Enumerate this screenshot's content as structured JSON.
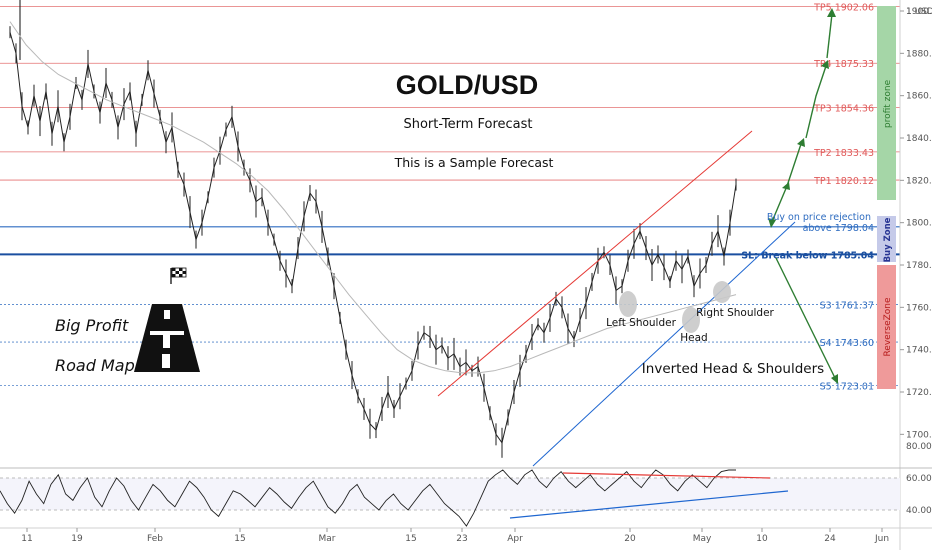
{
  "chart_data": {
    "type": "line",
    "title": "GOLD/USD",
    "subtitle": "Short-Term Forecast",
    "note": "This is a Sample Forecast",
    "currency_label": "1 USD",
    "ylim": [
      1690,
      1905
    ],
    "y_ticks": [
      1700,
      1720,
      1740,
      1760,
      1780,
      1800,
      1820,
      1840,
      1860,
      1880,
      1900
    ],
    "x_ticks": [
      "11",
      "19",
      "Feb",
      "15",
      "Mar",
      "15",
      "23",
      "Apr",
      "20",
      "May",
      "10",
      "24",
      "Jun"
    ],
    "levels": [
      {
        "key": "tp5",
        "label": "TP5 1902.06",
        "value": 1902.06,
        "color": "#e05a5a"
      },
      {
        "key": "tp4",
        "label": "TP4 1875.33",
        "value": 1875.33,
        "color": "#e05a5a"
      },
      {
        "key": "tp3",
        "label": "TP3 1854.36",
        "value": 1854.36,
        "color": "#e05a5a"
      },
      {
        "key": "tp2",
        "label": "TP2 1833.43",
        "value": 1833.43,
        "color": "#e05a5a"
      },
      {
        "key": "tp1",
        "label": "TP1 1820.12",
        "value": 1820.12,
        "color": "#e05a5a"
      },
      {
        "key": "buy",
        "label": "above 1798.04",
        "value": 1798.04,
        "color": "#2e6cc0"
      },
      {
        "key": "sl",
        "label": "SL: Break below 1785.04",
        "value": 1785.04,
        "color": "#1a4fa0"
      },
      {
        "key": "s3",
        "label": "S3 1761.37",
        "value": 1761.37,
        "color": "#2e6cc0"
      },
      {
        "key": "s4",
        "label": "S4 1743.60",
        "value": 1743.6,
        "color": "#2e6cc0"
      },
      {
        "key": "s5",
        "label": "S5 1723.01",
        "value": 1723.01,
        "color": "#2e6cc0"
      }
    ],
    "annotations": {
      "buy_text": "Buy on price rejection",
      "left_shoulder": "Left Shoulder",
      "head": "Head",
      "right_shoulder": "Right Shoulder",
      "pattern": "Inverted Head & Shoulders",
      "road_map_1": "Big Profit",
      "road_map_2": "Road Map"
    },
    "zones": {
      "profit": "profit zone",
      "buy": "Buy Zone",
      "reverse": "ReverseZone"
    },
    "price_series": [
      1890,
      1880,
      1855,
      1845,
      1860,
      1848,
      1862,
      1842,
      1855,
      1838,
      1850,
      1866,
      1858,
      1875,
      1862,
      1852,
      1866,
      1858,
      1845,
      1856,
      1862,
      1842,
      1858,
      1872,
      1861,
      1850,
      1838,
      1845,
      1825,
      1818,
      1805,
      1792,
      1800,
      1812,
      1826,
      1834,
      1844,
      1850,
      1836,
      1826,
      1820,
      1810,
      1812,
      1800,
      1792,
      1782,
      1776,
      1770,
      1788,
      1803,
      1814,
      1810,
      1798,
      1784,
      1770,
      1755,
      1740,
      1728,
      1718,
      1712,
      1705,
      1702,
      1712,
      1720,
      1712,
      1718,
      1724,
      1730,
      1742,
      1748,
      1746,
      1740,
      1742,
      1736,
      1738,
      1732,
      1734,
      1730,
      1732,
      1722,
      1710,
      1700,
      1696,
      1708,
      1720,
      1730,
      1738,
      1746,
      1752,
      1748,
      1755,
      1764,
      1760,
      1750,
      1745,
      1754,
      1762,
      1772,
      1782,
      1786,
      1780,
      1768,
      1770,
      1782,
      1790,
      1796,
      1788,
      1780,
      1785,
      1779,
      1772,
      1782,
      1778,
      1784,
      1770,
      1776,
      1780,
      1790,
      1796,
      1784,
      1800,
      1818
    ],
    "ma_series": [
      1895,
      1884,
      1876,
      1870,
      1866,
      1862,
      1858,
      1855,
      1852,
      1849,
      1846,
      1842,
      1838,
      1833,
      1828,
      1822,
      1815,
      1806,
      1796,
      1786,
      1776,
      1766,
      1757,
      1748,
      1740,
      1735,
      1732,
      1730,
      1729,
      1729,
      1730,
      1732,
      1735,
      1738,
      1741,
      1744,
      1747,
      1750,
      1752,
      1754,
      1756,
      1758,
      1760,
      1762,
      1764,
      1766
    ],
    "rsi_ticks": [
      40,
      60,
      80
    ],
    "rsi_series": [
      52,
      44,
      38,
      46,
      58,
      50,
      44,
      56,
      62,
      50,
      46,
      54,
      60,
      48,
      42,
      52,
      60,
      55,
      46,
      40,
      48,
      56,
      52,
      46,
      42,
      50,
      58,
      54,
      48,
      40,
      36,
      44,
      52,
      50,
      46,
      42,
      48,
      54,
      50,
      45,
      41,
      48,
      54,
      58,
      50,
      42,
      38,
      44,
      52,
      56,
      48,
      44,
      40,
      46,
      50,
      44,
      40,
      46,
      52,
      56,
      50,
      44,
      40,
      36,
      30,
      38,
      48,
      58,
      62,
      66,
      60,
      56,
      62,
      66,
      58,
      54,
      60,
      64,
      58,
      54,
      58,
      62,
      56,
      52,
      56,
      60,
      64,
      58,
      54,
      60,
      66,
      62,
      56,
      52,
      58,
      62,
      58,
      54,
      60,
      64,
      70,
      76
    ]
  }
}
